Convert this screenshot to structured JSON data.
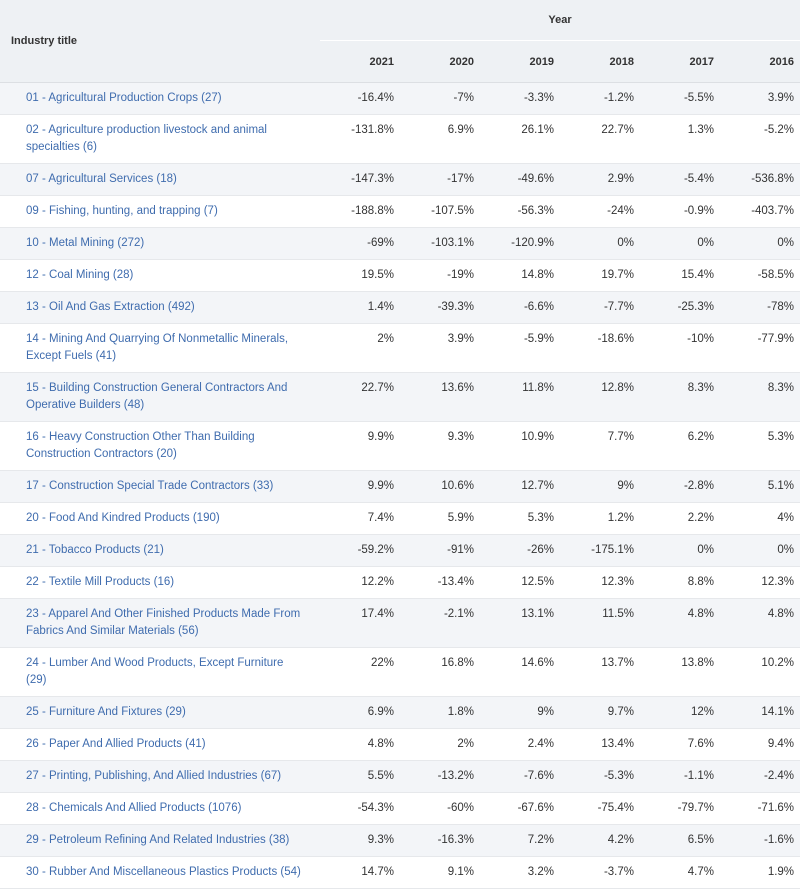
{
  "table": {
    "industry_header": "Industry title",
    "year_group_header": "Year",
    "years": [
      "2021",
      "2020",
      "2019",
      "2018",
      "2017",
      "2016"
    ],
    "rows": [
      {
        "industry": "01 - Agricultural Production Crops (27)",
        "values": [
          "-16.4%",
          "-7%",
          "-3.3%",
          "-1.2%",
          "-5.5%",
          "3.9%"
        ]
      },
      {
        "industry": "02 - Agriculture production livestock and animal specialties (6)",
        "values": [
          "-131.8%",
          "6.9%",
          "26.1%",
          "22.7%",
          "1.3%",
          "-5.2%"
        ]
      },
      {
        "industry": "07 - Agricultural Services (18)",
        "values": [
          "-147.3%",
          "-17%",
          "-49.6%",
          "2.9%",
          "-5.4%",
          "-536.8%"
        ]
      },
      {
        "industry": "09 - Fishing, hunting, and trapping (7)",
        "values": [
          "-188.8%",
          "-107.5%",
          "-56.3%",
          "-24%",
          "-0.9%",
          "-403.7%"
        ]
      },
      {
        "industry": "10 - Metal Mining (272)",
        "values": [
          "-69%",
          "-103.1%",
          "-120.9%",
          "0%",
          "0%",
          "0%"
        ]
      },
      {
        "industry": "12 - Coal Mining (28)",
        "values": [
          "19.5%",
          "-19%",
          "14.8%",
          "19.7%",
          "15.4%",
          "-58.5%"
        ]
      },
      {
        "industry": "13 - Oil And Gas Extraction (492)",
        "values": [
          "1.4%",
          "-39.3%",
          "-6.6%",
          "-7.7%",
          "-25.3%",
          "-78%"
        ]
      },
      {
        "industry": "14 - Mining And Quarrying Of Nonmetallic Minerals, Except Fuels (41)",
        "values": [
          "2%",
          "3.9%",
          "-5.9%",
          "-18.6%",
          "-10%",
          "-77.9%"
        ]
      },
      {
        "industry": "15 - Building Construction General Contractors And Operative Builders (48)",
        "values": [
          "22.7%",
          "13.6%",
          "11.8%",
          "12.8%",
          "8.3%",
          "8.3%"
        ]
      },
      {
        "industry": "16 - Heavy Construction Other Than Building Construction Contractors (20)",
        "values": [
          "9.9%",
          "9.3%",
          "10.9%",
          "7.7%",
          "6.2%",
          "5.3%"
        ]
      },
      {
        "industry": "17 - Construction Special Trade Contractors (33)",
        "values": [
          "9.9%",
          "10.6%",
          "12.7%",
          "9%",
          "-2.8%",
          "5.1%"
        ]
      },
      {
        "industry": "20 - Food And Kindred Products (190)",
        "values": [
          "7.4%",
          "5.9%",
          "5.3%",
          "1.2%",
          "2.2%",
          "4%"
        ]
      },
      {
        "industry": "21 - Tobacco Products (21)",
        "values": [
          "-59.2%",
          "-91%",
          "-26%",
          "-175.1%",
          "0%",
          "0%"
        ]
      },
      {
        "industry": "22 - Textile Mill Products (16)",
        "values": [
          "12.2%",
          "-13.4%",
          "12.5%",
          "12.3%",
          "8.8%",
          "12.3%"
        ]
      },
      {
        "industry": "23 - Apparel And Other Finished Products Made From Fabrics And Similar Materials (56)",
        "values": [
          "17.4%",
          "-2.1%",
          "13.1%",
          "11.5%",
          "4.8%",
          "4.8%"
        ]
      },
      {
        "industry": "24 - Lumber And Wood Products, Except Furniture (29)",
        "values": [
          "22%",
          "16.8%",
          "14.6%",
          "13.7%",
          "13.8%",
          "10.2%"
        ]
      },
      {
        "industry": "25 - Furniture And Fixtures (29)",
        "values": [
          "6.9%",
          "1.8%",
          "9%",
          "9.7%",
          "12%",
          "14.1%"
        ]
      },
      {
        "industry": "26 - Paper And Allied Products (41)",
        "values": [
          "4.8%",
          "2%",
          "2.4%",
          "13.4%",
          "7.6%",
          "9.4%"
        ]
      },
      {
        "industry": "27 - Printing, Publishing, And Allied Industries (67)",
        "values": [
          "5.5%",
          "-13.2%",
          "-7.6%",
          "-5.3%",
          "-1.1%",
          "-2.4%"
        ]
      },
      {
        "industry": "28 - Chemicals And Allied Products (1076)",
        "values": [
          "-54.3%",
          "-60%",
          "-67.6%",
          "-75.4%",
          "-79.7%",
          "-71.6%"
        ]
      },
      {
        "industry": "29 - Petroleum Refining And Related Industries (38)",
        "values": [
          "9.3%",
          "-16.3%",
          "7.2%",
          "4.2%",
          "6.5%",
          "-1.6%"
        ]
      },
      {
        "industry": "30 - Rubber And Miscellaneous Plastics Products (54)",
        "values": [
          "14.7%",
          "9.1%",
          "3.2%",
          "-3.7%",
          "4.7%",
          "1.9%"
        ]
      }
    ]
  },
  "colors": {
    "link": "#3f6cae",
    "header_bg": "#eef1f4",
    "row_alt_bg": "#f3f5f8"
  }
}
